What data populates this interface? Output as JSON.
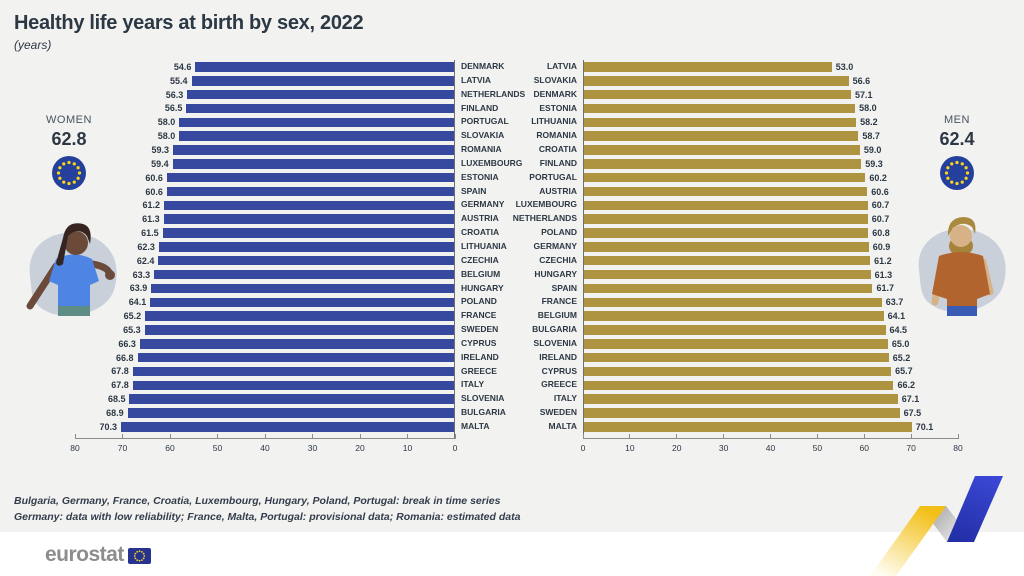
{
  "header": {
    "title": "Healthy life years at birth by sex, 2022",
    "subtitle": "(years)"
  },
  "panels": {
    "women": {
      "label": "WOMEN",
      "value": "62.8"
    },
    "men": {
      "label": "MEN",
      "value": "62.4"
    }
  },
  "chart_data": [
    {
      "type": "bar",
      "name": "women",
      "orientation": "horizontal",
      "direction": "right-to-left",
      "bar_color": "#37499e",
      "xlim": [
        0,
        80
      ],
      "axis_ticks": [
        "80",
        "70",
        "60",
        "50",
        "40",
        "30",
        "20",
        "10",
        "0"
      ],
      "eu_average": 62.8,
      "categories": [
        "DENMARK",
        "LATVIA",
        "NETHERLANDS",
        "FINLAND",
        "PORTUGAL",
        "SLOVAKIA",
        "ROMANIA",
        "LUXEMBOURG",
        "ESTONIA",
        "SPAIN",
        "GERMANY",
        "AUSTRIA",
        "CROATIA",
        "LITHUANIA",
        "CZECHIA",
        "BELGIUM",
        "HUNGARY",
        "POLAND",
        "FRANCE",
        "SWEDEN",
        "CYPRUS",
        "IRELAND",
        "GREECE",
        "ITALY",
        "SLOVENIA",
        "BULGARIA",
        "MALTA"
      ],
      "values": [
        54.6,
        55.4,
        56.3,
        56.5,
        58.0,
        58.0,
        59.3,
        59.4,
        60.6,
        60.6,
        61.2,
        61.3,
        61.5,
        62.3,
        62.4,
        63.3,
        63.9,
        64.1,
        65.2,
        65.3,
        66.3,
        66.8,
        67.8,
        67.8,
        68.5,
        68.9,
        70.3
      ]
    },
    {
      "type": "bar",
      "name": "men",
      "orientation": "horizontal",
      "direction": "left-to-right",
      "bar_color": "#ae9340",
      "xlim": [
        0,
        80
      ],
      "axis_ticks": [
        "0",
        "10",
        "20",
        "30",
        "40",
        "50",
        "60",
        "70",
        "80"
      ],
      "eu_average": 62.4,
      "categories": [
        "LATVIA",
        "SLOVAKIA",
        "DENMARK",
        "ESTONIA",
        "LITHUANIA",
        "ROMANIA",
        "CROATIA",
        "FINLAND",
        "PORTUGAL",
        "AUSTRIA",
        "LUXEMBOURG",
        "NETHERLANDS",
        "POLAND",
        "GERMANY",
        "CZECHIA",
        "HUNGARY",
        "SPAIN",
        "FRANCE",
        "BELGIUM",
        "BULGARIA",
        "SLOVENIA",
        "IRELAND",
        "CYPRUS",
        "GREECE",
        "ITALY",
        "SWEDEN",
        "MALTA"
      ],
      "values": [
        53.0,
        56.6,
        57.1,
        58.0,
        58.2,
        58.7,
        59.0,
        59.3,
        60.2,
        60.6,
        60.7,
        60.7,
        60.8,
        60.9,
        61.2,
        61.3,
        61.7,
        63.7,
        64.1,
        64.5,
        65.0,
        65.2,
        65.7,
        66.2,
        67.1,
        67.5,
        70.1
      ]
    }
  ],
  "footnotes": [
    "Bulgaria, Germany, France, Croatia, Luxembourg, Hungary, Poland, Portugal: break in time series",
    "Germany: data with low reliability; France, Malta, Portugal: provisional data; Romania: estimated data"
  ],
  "footer": {
    "logo_text": "eurostat"
  },
  "icons": {
    "eu_flag": "eu-flag-circle-of-stars",
    "woman_figure": "woman-illustration",
    "man_figure": "man-illustration",
    "decoration": "yellow-blue-ribbon-zigzag"
  },
  "colors": {
    "background": "#f2f2f1",
    "women_bar": "#37499e",
    "men_bar": "#ae9340",
    "text_dark": "#2c3844",
    "eu_flag_blue": "#24409c",
    "eu_flag_star": "#ffd617",
    "accent_yellow": "#f2bf16",
    "accent_blue": "#2c38b8"
  }
}
